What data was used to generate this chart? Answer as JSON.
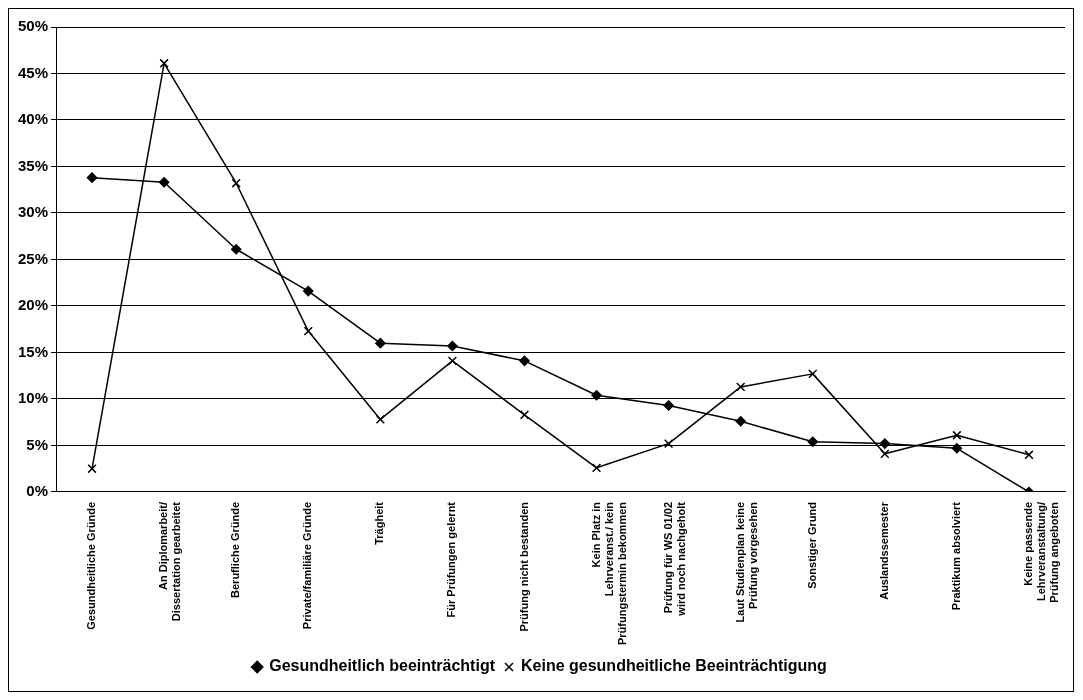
{
  "chart_data": {
    "type": "line",
    "categories": [
      "Gesundheitliche Gründe",
      "An Diplomarbeit/ Dissertation gearbeitet",
      "Berufliche Gründe",
      "Private/familiäre Gründe",
      "Trägheit",
      "Für Prüfungen gelernt",
      "Prüfung nicht bestanden",
      "Kein Platz in Lehrveranst./ kein Prüfungstermin bekommen",
      "Prüfung für WS 01/02 wird noch nachgeholt",
      "Laut Studienplan keine Prüfung vorgesehen",
      "Sonstiger Grund",
      "Auslandssemester",
      "Praktikum absolviert",
      "Keine passende Lehrveranstaltung/ Prüfung angeboten"
    ],
    "series": [
      {
        "name": "Gesundheitlich beeinträchtigt",
        "color": "#000000",
        "marker": "diamond",
        "values": [
          33.8,
          33.3,
          26.1,
          21.6,
          16.0,
          15.7,
          14.1,
          10.4,
          9.3,
          7.6,
          5.4,
          5.2,
          4.7,
          0
        ]
      },
      {
        "name": "Keine gesundheitliche Beeinträchtigung",
        "color": "#000000",
        "marker": "cross",
        "values": [
          2.5,
          46.1,
          33.2,
          17.3,
          7.8,
          14.1,
          8.3,
          2.6,
          5.2,
          11.3,
          12.7,
          4.1,
          6.1,
          4.0
        ]
      }
    ],
    "ylim": [
      0,
      50
    ],
    "yticks": [
      {
        "value": 0,
        "label": "0%"
      },
      {
        "value": 5,
        "label": "5%"
      },
      {
        "value": 10,
        "label": "10%"
      },
      {
        "value": 15,
        "label": "15%"
      },
      {
        "value": 20,
        "label": "20%"
      },
      {
        "value": 25,
        "label": "25%"
      },
      {
        "value": 30,
        "label": "30%"
      },
      {
        "value": 35,
        "label": "35%"
      },
      {
        "value": 40,
        "label": "40%"
      },
      {
        "value": 45,
        "label": "45%"
      },
      {
        "value": 50,
        "label": "50%"
      }
    ],
    "grid": "y",
    "legend": "bottom",
    "line_style": "solid"
  }
}
